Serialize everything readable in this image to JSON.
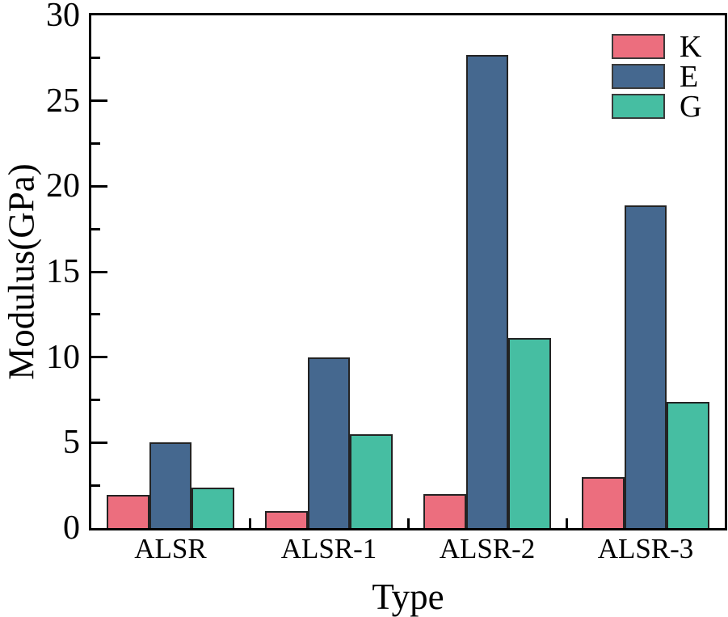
{
  "chart_data": {
    "type": "bar",
    "title": "",
    "xlabel": "Type",
    "ylabel": "Modulus(GPa)",
    "categories": [
      "ALSR",
      "ALSR-1",
      "ALSR-2",
      "ALSR-3"
    ],
    "series": [
      {
        "name": "K",
        "color": "#EC6E7E",
        "values": [
          1.95,
          1.0,
          2.0,
          3.0
        ]
      },
      {
        "name": "E",
        "color": "#45688F",
        "values": [
          5.0,
          10.0,
          27.7,
          18.9
        ]
      },
      {
        "name": "G",
        "color": "#46BEA2",
        "values": [
          2.35,
          5.5,
          11.1,
          7.4
        ]
      }
    ],
    "ylim": [
      0,
      30
    ],
    "y_major_ticks": [
      0,
      5,
      10,
      15,
      20,
      25,
      30
    ],
    "y_minor_step": 2.5,
    "legend_position": "upper-right",
    "legend_labels": [
      "K",
      "E",
      "G"
    ],
    "grid": false,
    "bar_edge_color": "#232323",
    "axis_color": "#000000",
    "background_color": "#ffffff"
  }
}
